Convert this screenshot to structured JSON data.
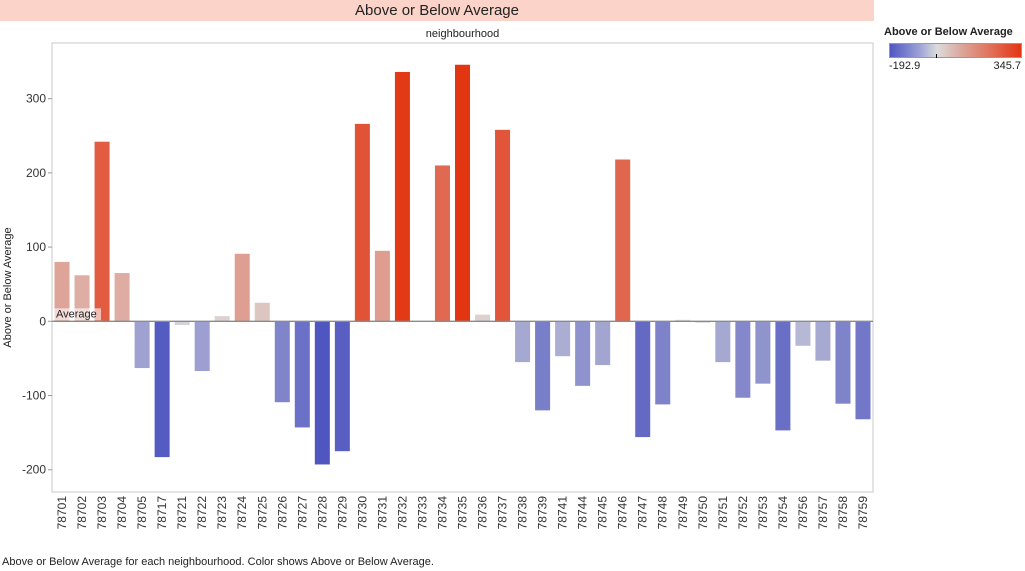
{
  "title": "Above or Below Average",
  "footer": "Above or Below Average for each neighbourhood.  Color shows Above or Below Average.",
  "legend": {
    "title": "Above or Below Average",
    "min_label": "-192.9",
    "max_label": "345.7",
    "colors": {
      "negative": "#4f56c0",
      "neutral": "#dcdcdc",
      "positive": "#e23512"
    }
  },
  "chart_data": {
    "type": "bar",
    "title": "neighbourhood",
    "xlabel": "",
    "ylabel": "Above or Below Average",
    "ylim": [
      -230,
      375
    ],
    "yticks": [
      -200,
      -100,
      0,
      100,
      200,
      300
    ],
    "reference_line": {
      "label": "Average",
      "value": 0
    },
    "color_range": [
      -192.9,
      345.7
    ],
    "grid": false,
    "legend_position": "top-right",
    "categories": [
      "78701",
      "78702",
      "78703",
      "78704",
      "78705",
      "78717",
      "78721",
      "78722",
      "78723",
      "78724",
      "78725",
      "78726",
      "78727",
      "78728",
      "78729",
      "78730",
      "78731",
      "78732",
      "78733",
      "78734",
      "78735",
      "78736",
      "78737",
      "78738",
      "78739",
      "78741",
      "78744",
      "78745",
      "78746",
      "78747",
      "78748",
      "78749",
      "78750",
      "78751",
      "78752",
      "78753",
      "78754",
      "78756",
      "78757",
      "78758",
      "78759"
    ],
    "values": [
      80,
      62,
      242,
      65,
      -63,
      -183,
      -5,
      -67,
      7,
      91,
      25,
      -109,
      -143,
      -192.9,
      -175,
      266,
      95,
      336,
      0,
      210,
      345.7,
      9,
      258,
      -55,
      -120,
      -47,
      -87,
      -59,
      218,
      -156,
      -112,
      2,
      -2,
      -55,
      -103,
      -84,
      -147,
      -33,
      -53,
      -111,
      -132
    ]
  }
}
